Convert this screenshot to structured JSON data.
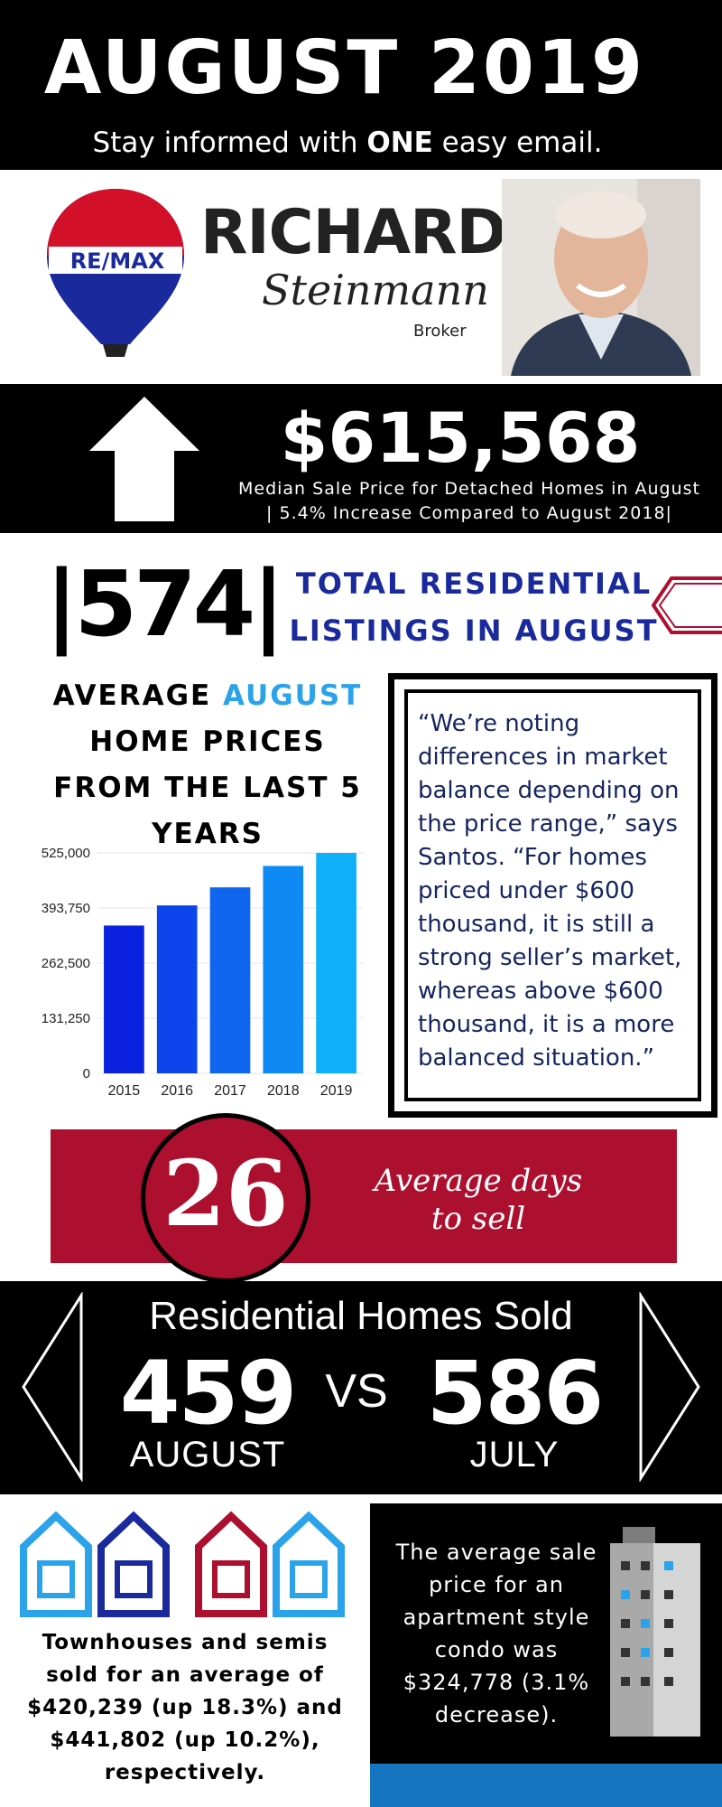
{
  "header": {
    "title": "AUGUST 2019",
    "subtitle_before": "Stay informed with ",
    "subtitle_bold": "ONE",
    "subtitle_after": " easy email."
  },
  "agent": {
    "brand": "RE/MAX",
    "first_name": "RICHARD",
    "last_name": "Steinmann",
    "role": "Broker"
  },
  "median_price": {
    "value": "$615,568",
    "caption_line1": "Median Sale Price for Detached Homes in August",
    "caption_line2": "| 5.4% Increase Compared to August 2018|"
  },
  "listings": {
    "number": "|574|",
    "label_line1": "TOTAL RESIDENTIAL",
    "label_line2": "LISTINGS IN AUGUST"
  },
  "chart_title": {
    "part1": "AVERAGE ",
    "accent": "AUGUST",
    "part2": "HOME PRICES",
    "part3": "FROM THE LAST 5",
    "part4": "YEARS"
  },
  "chart_data": {
    "type": "bar",
    "categories": [
      "2015",
      "2016",
      "2017",
      "2018",
      "2019"
    ],
    "values": [
      352000,
      400000,
      443000,
      494000,
      525000
    ],
    "title": "AVERAGE AUGUST HOME PRICES FROM THE LAST 5 YEARS",
    "xlabel": "",
    "ylabel": "",
    "ylim": [
      0,
      525000
    ],
    "yticks": [
      "0",
      "131,250",
      "262,500",
      "393,750",
      "525,000"
    ],
    "ytick_values": [
      0,
      131250,
      262500,
      393750,
      525000
    ],
    "bar_colors": [
      "#0a22e0",
      "#0d45ec",
      "#0f67f0",
      "#0f8af4",
      "#0fb0fa"
    ],
    "grid": true
  },
  "quote": {
    "text": "“We’re noting differences in market balance depending on the price range,” says Santos. “For homes priced under $600 thousand, it is still a strong seller’s market, whereas above $600 thousand, it is a more balanced situation.”"
  },
  "days_to_sell": {
    "number": "26",
    "label_line1": "Average days",
    "label_line2": "to sell"
  },
  "homes_sold": {
    "title": "Residential Homes Sold",
    "august_value": "459",
    "vs": "VS",
    "july_value": "586",
    "august_label": "AUGUST",
    "july_label": "JULY"
  },
  "townhouses": {
    "text": "Townhouses and semis sold for an average of $420,239 (up 18.3%) and $441,802 (up 10.2%), respectively."
  },
  "condo": {
    "text": "The average sale price for an apartment style condo was $324,778 (3.1% decrease)."
  },
  "icons": {
    "house_arrow": "house-arrow-icon",
    "balloon": "hot-air-balloon-icon",
    "building": "building-icon",
    "townhouses": "house-outline-icon"
  },
  "colors": {
    "black": "#000000",
    "brand_red": "#ad0f2f",
    "brand_blue": "#1a2a9c",
    "accent_blue": "#2aa3ea",
    "condo_blue": "#1575c0"
  }
}
